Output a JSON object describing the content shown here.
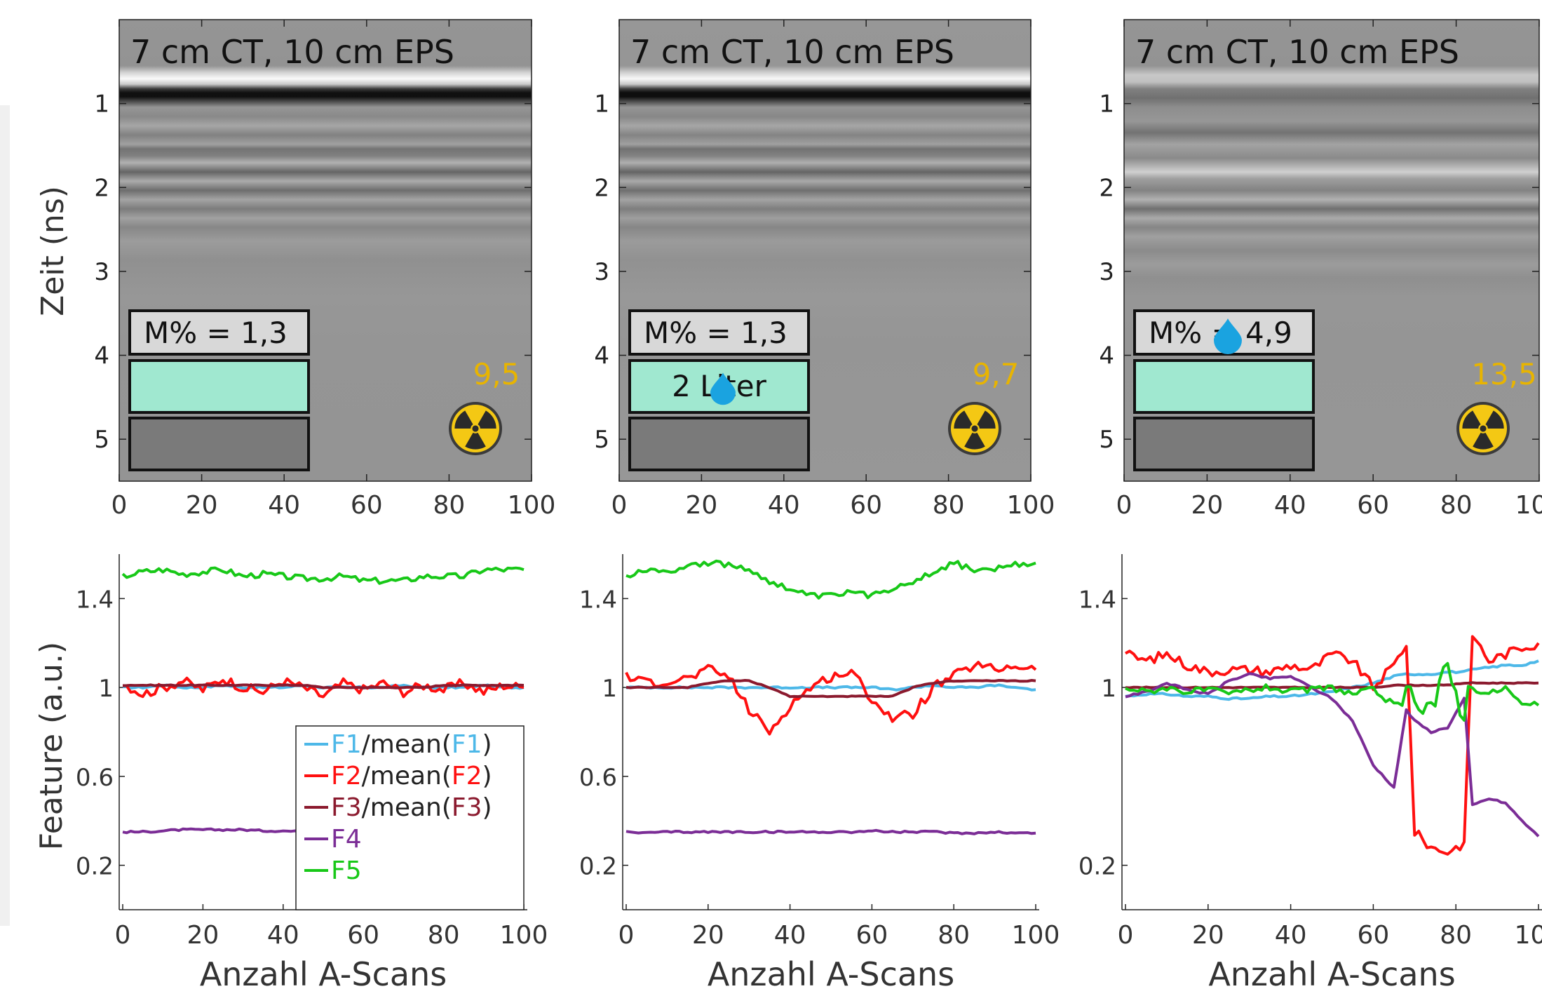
{
  "colors": {
    "F1": "#4db8e8",
    "F2": "#ff1010",
    "F3": "#8b1a2e",
    "F4": "#7b2d96",
    "F5": "#18c818",
    "radiation_value": "#e8b400",
    "moisture_box": "#a0e8d0",
    "bottom_box": "#7a7a7a",
    "label_box": "#d8d8d8",
    "drop": "#1aa3e0"
  },
  "icons": [
    "radiation-icon",
    "water-drop-icon"
  ],
  "radargrams": [
    {
      "label": "7 cm CT, 10 cm EPS",
      "moisture_label": "M% = 1,3",
      "box_label": "",
      "radiation_value": "9,5",
      "drop": "none",
      "seed": 3
    },
    {
      "label": "7 cm CT, 10 cm EPS",
      "moisture_label": "M% = 1,3",
      "box_label": "2 Liter",
      "radiation_value": "9,7",
      "drop": "box",
      "seed": 11
    },
    {
      "label": "7 cm CT, 10 cm EPS",
      "moisture_label": "M% = 4,9",
      "box_label": "",
      "radiation_value": "13,5",
      "drop": "label",
      "seed": 29
    }
  ],
  "radargram_axes": {
    "ylabel": "Zeit (ns)",
    "y_ticks": [
      "1",
      "2",
      "3",
      "4",
      "5"
    ],
    "x_ticks": [
      "0",
      "20",
      "40",
      "60",
      "80",
      "100"
    ],
    "xlim": [
      0,
      100
    ],
    "ylim": [
      0,
      5.5
    ]
  },
  "chart_data": [
    {
      "type": "line",
      "xlabel": "Anzahl A-Scans",
      "ylabel": "Feature (a.u.)",
      "xlim": [
        0,
        100
      ],
      "ylim": [
        0,
        1.6
      ],
      "x_ticks": [
        "0",
        "20",
        "40",
        "60",
        "80",
        "100"
      ],
      "y_ticks": [
        "0.2",
        "0.6",
        "1",
        "1.4"
      ],
      "legend": {
        "placement": "bottom-right"
      },
      "x": [
        0,
        5,
        10,
        15,
        20,
        25,
        30,
        35,
        40,
        45,
        50,
        55,
        60,
        65,
        70,
        75,
        80,
        85,
        90,
        95,
        100
      ],
      "series": [
        {
          "name": "F1/mean(F1)",
          "base": "F1",
          "color_key": "F1",
          "values": [
            1.0,
            1.0,
            1.01,
            1.0,
            1.0,
            1.01,
            1.0,
            1.0,
            1.0,
            1.01,
            1.0,
            1.0,
            1.0,
            1.0,
            1.01,
            1.0,
            1.0,
            1.0,
            1.01,
            1.0,
            1.0
          ]
        },
        {
          "name": "F2/mean(F2)",
          "base": "F2",
          "color_key": "F2",
          "values": [
            1.02,
            0.97,
            1.0,
            1.03,
            0.99,
            1.04,
            1.0,
            0.98,
            1.03,
            1.0,
            0.96,
            1.02,
            0.99,
            1.02,
            0.98,
            1.01,
            0.99,
            1.02,
            0.98,
            1.01,
            1.0
          ]
        },
        {
          "name": "F3/mean(F3)",
          "base": "F3",
          "color_key": "F3",
          "values": [
            1.01,
            1.01,
            1.01,
            1.01,
            1.01,
            1.01,
            1.01,
            1.01,
            1.01,
            1.01,
            1.0,
            1.0,
            1.0,
            1.0,
            1.0,
            1.0,
            1.01,
            1.01,
            1.01,
            1.01,
            1.01
          ]
        },
        {
          "name": "F4",
          "base": "F4",
          "color_key": "F4",
          "values": [
            0.35,
            0.35,
            0.355,
            0.36,
            0.36,
            0.36,
            0.36,
            0.355,
            0.355,
            0.35,
            0.35,
            0.35,
            0.35,
            0.35,
            0.35,
            0.35,
            0.35,
            0.35,
            0.35,
            0.35,
            0.35
          ]
        },
        {
          "name": "F5",
          "base": "F5",
          "color_key": "F5",
          "values": [
            1.5,
            1.52,
            1.53,
            1.51,
            1.52,
            1.53,
            1.5,
            1.51,
            1.5,
            1.49,
            1.49,
            1.5,
            1.48,
            1.48,
            1.48,
            1.5,
            1.5,
            1.5,
            1.53,
            1.53,
            1.53
          ]
        }
      ]
    },
    {
      "type": "line",
      "xlabel": "Anzahl A-Scans",
      "ylabel": "",
      "xlim": [
        0,
        100
      ],
      "ylim": [
        0,
        1.6
      ],
      "x_ticks": [
        "0",
        "20",
        "40",
        "60",
        "80",
        "100"
      ],
      "y_ticks": [
        "0.2",
        "0.6",
        "1",
        "1.4"
      ],
      "x": [
        0,
        5,
        10,
        15,
        20,
        25,
        30,
        35,
        40,
        45,
        50,
        55,
        60,
        65,
        70,
        75,
        80,
        85,
        90,
        95,
        100
      ],
      "series": [
        {
          "name": "F1/mean(F1)",
          "color_key": "F1",
          "values": [
            1.0,
            1.0,
            1.0,
            1.0,
            1.0,
            1.0,
            1.0,
            1.0,
            1.0,
            1.0,
            1.0,
            1.0,
            1.0,
            0.99,
            1.0,
            1.01,
            1.0,
            1.0,
            1.01,
            1.0,
            0.99
          ]
        },
        {
          "name": "F2/mean(F2)",
          "color_key": "F2",
          "values": [
            1.05,
            1.02,
            1.03,
            1.04,
            1.08,
            1.05,
            0.9,
            0.8,
            0.92,
            1.0,
            1.05,
            1.07,
            0.95,
            0.86,
            0.88,
            1.0,
            1.05,
            1.1,
            1.08,
            1.1,
            1.08
          ]
        },
        {
          "name": "F3/mean(F3)",
          "color_key": "F3",
          "values": [
            1.0,
            1.0,
            1.0,
            1.0,
            1.02,
            1.03,
            1.03,
            1.0,
            0.96,
            0.96,
            0.96,
            0.96,
            0.96,
            0.96,
            1.0,
            1.02,
            1.03,
            1.03,
            1.03,
            1.03,
            1.03
          ]
        },
        {
          "name": "F4",
          "color_key": "F4",
          "values": [
            0.35,
            0.345,
            0.35,
            0.35,
            0.35,
            0.35,
            0.35,
            0.35,
            0.35,
            0.35,
            0.35,
            0.35,
            0.355,
            0.35,
            0.35,
            0.35,
            0.345,
            0.345,
            0.35,
            0.345,
            0.345
          ]
        },
        {
          "name": "F5",
          "color_key": "F5",
          "values": [
            1.5,
            1.53,
            1.52,
            1.55,
            1.56,
            1.55,
            1.53,
            1.48,
            1.44,
            1.41,
            1.41,
            1.43,
            1.41,
            1.45,
            1.48,
            1.52,
            1.56,
            1.53,
            1.53,
            1.55,
            1.56
          ]
        }
      ]
    },
    {
      "type": "line",
      "xlabel": "Anzahl A-Scans",
      "ylabel": "",
      "xlim": [
        0,
        100
      ],
      "ylim": [
        0,
        1.6
      ],
      "x_ticks": [
        "0",
        "20",
        "40",
        "60",
        "80",
        "100"
      ],
      "y_ticks": [
        "0.2",
        "1",
        "1.4"
      ],
      "x": [
        0,
        5,
        10,
        15,
        20,
        25,
        30,
        35,
        40,
        45,
        50,
        55,
        60,
        65,
        68,
        70,
        74,
        78,
        82,
        84,
        88,
        92,
        96,
        100
      ],
      "series": [
        {
          "name": "F1/mean(F1)",
          "color_key": "F1",
          "values": [
            0.96,
            0.97,
            0.97,
            0.96,
            0.96,
            0.95,
            0.95,
            0.96,
            0.96,
            0.97,
            0.98,
            1.0,
            1.02,
            1.05,
            1.06,
            1.06,
            1.06,
            1.07,
            1.07,
            1.08,
            1.09,
            1.1,
            1.1,
            1.12
          ]
        },
        {
          "name": "F2/mean(F2)",
          "color_key": "F2",
          "values": [
            1.15,
            1.12,
            1.15,
            1.1,
            1.07,
            1.08,
            1.08,
            1.07,
            1.1,
            1.08,
            1.15,
            1.12,
            1.0,
            1.1,
            1.2,
            0.35,
            0.28,
            0.26,
            0.3,
            1.24,
            1.12,
            1.15,
            1.18,
            1.2
          ]
        },
        {
          "name": "F3/mean(F3)",
          "color_key": "F3",
          "values": [
            1.0,
            1.0,
            1.0,
            1.0,
            1.0,
            1.0,
            1.0,
            1.0,
            1.0,
            1.0,
            1.0,
            1.0,
            1.0,
            1.01,
            1.01,
            1.01,
            1.01,
            1.01,
            1.02,
            1.02,
            1.02,
            1.02,
            1.02,
            1.02
          ]
        },
        {
          "name": "F4",
          "color_key": "F4",
          "values": [
            0.96,
            0.98,
            1.02,
            0.99,
            0.97,
            1.03,
            1.06,
            1.04,
            1.05,
            1.0,
            0.95,
            0.85,
            0.65,
            0.55,
            0.9,
            0.85,
            0.8,
            0.82,
            0.95,
            0.47,
            0.5,
            0.48,
            0.4,
            0.33
          ]
        },
        {
          "name": "F5",
          "color_key": "F5",
          "values": [
            1.0,
            0.98,
            1.0,
            0.98,
            0.99,
            0.97,
            0.99,
            1.0,
            0.98,
            0.99,
            1.0,
            0.97,
            0.99,
            0.92,
            0.92,
            1.0,
            0.92,
            1.05,
            0.92,
            1.0,
            0.97,
            1.0,
            0.92,
            0.92
          ]
        }
      ]
    }
  ]
}
